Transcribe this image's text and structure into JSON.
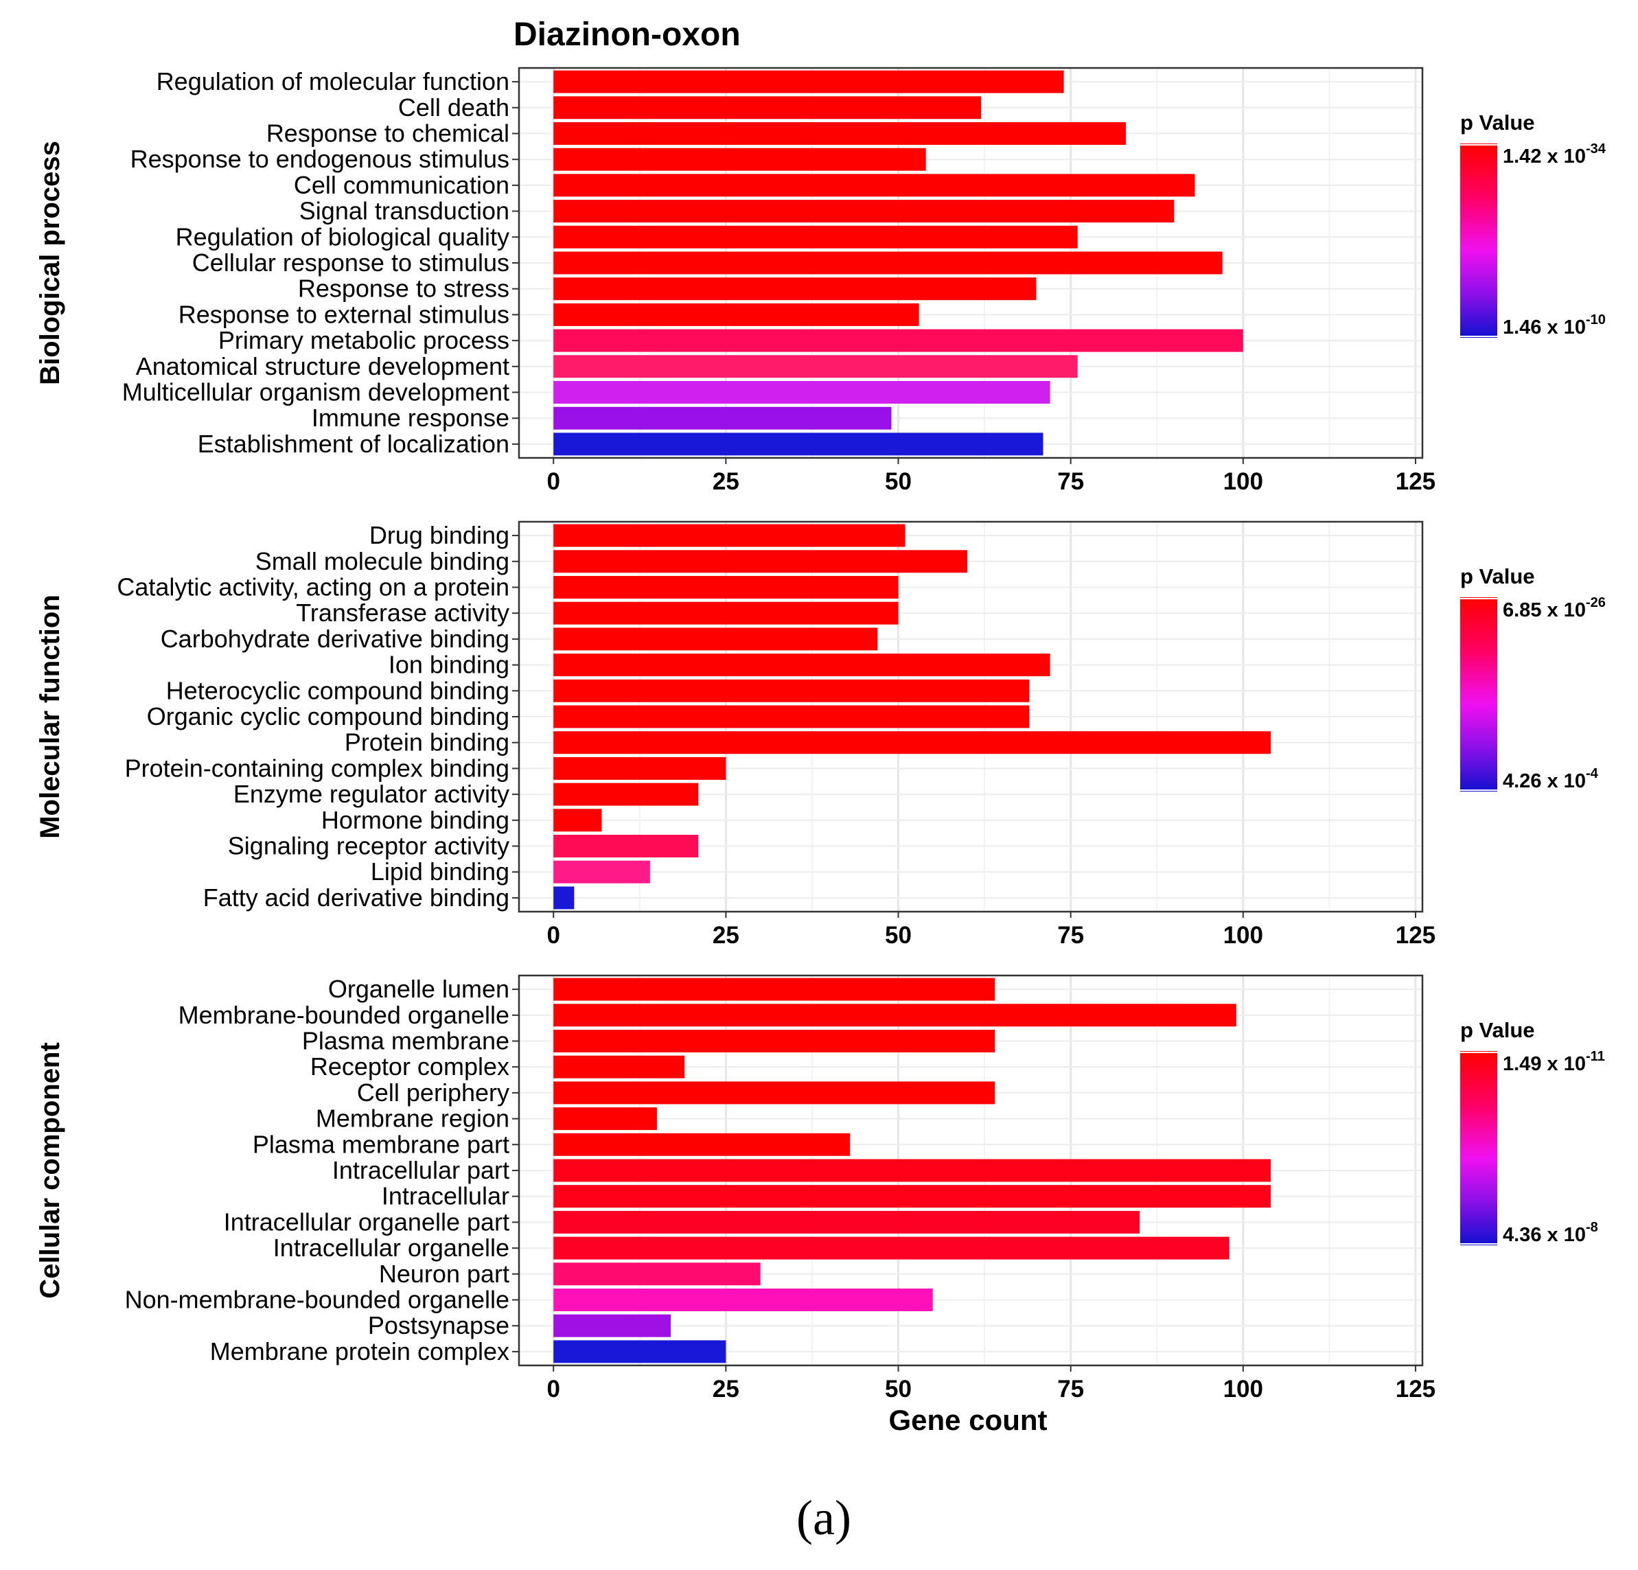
{
  "chart_data": [
    {
      "type": "bar",
      "orientation": "horizontal",
      "title": "Diazinon-oxon",
      "facet_label": "Biological process",
      "categories": [
        "Regulation of molecular function",
        "Cell death",
        "Response to chemical",
        "Response to endogenous stimulus",
        "Cell communication",
        "Signal transduction",
        "Regulation of biological quality",
        "Cellular response to stimulus",
        "Response to stress",
        "Response to external stimulus",
        "Primary metabolic process",
        "Anatomical structure development",
        "Multicellular organism development",
        "Immune response",
        "Establishment of localization"
      ],
      "values": [
        74,
        62,
        83,
        54,
        93,
        90,
        76,
        97,
        70,
        53,
        100,
        76,
        72,
        49,
        71
      ],
      "bar_colors": [
        "#ff0000",
        "#ff0000",
        "#ff0000",
        "#ff0000",
        "#ff0000",
        "#ff0000",
        "#ff0000",
        "#ff0000",
        "#ff0000",
        "#ff0000",
        "#ff0a5a",
        "#ff1b6a",
        "#d020f0",
        "#9a10e8",
        "#1a18d8"
      ],
      "xlim": [
        -5,
        126
      ],
      "xticks": [
        0,
        25,
        50,
        75,
        100,
        125
      ],
      "xlabel": "",
      "legend": {
        "title": "p Value",
        "high_base": "1.42 x 10",
        "high_exp": "-34",
        "low_base": "1.46 x 10",
        "low_exp": "-10",
        "position": "right"
      }
    },
    {
      "type": "bar",
      "orientation": "horizontal",
      "title": "",
      "facet_label": "Molecular function",
      "categories": [
        "Drug binding",
        "Small molecule binding",
        "Catalytic activity, acting on a protein",
        "Transferase activity",
        "Carbohydrate derivative binding",
        "Ion binding",
        "Heterocyclic compound binding",
        "Organic cyclic compound binding",
        "Protein binding",
        "Protein-containing complex binding",
        "Enzyme regulator activity",
        "Hormone binding",
        "Signaling receptor activity",
        "Lipid binding",
        "Fatty acid derivative binding"
      ],
      "values": [
        51,
        60,
        50,
        50,
        47,
        72,
        69,
        69,
        104,
        25,
        21,
        7,
        21,
        14,
        3
      ],
      "bar_colors": [
        "#ff0000",
        "#ff0000",
        "#ff0000",
        "#ff0000",
        "#ff0000",
        "#ff0000",
        "#ff0000",
        "#ff0000",
        "#ff0000",
        "#ff0000",
        "#ff0000",
        "#ff0000",
        "#ff0a55",
        "#ff1a88",
        "#1a18d8"
      ],
      "xlim": [
        -5,
        126
      ],
      "xticks": [
        0,
        25,
        50,
        75,
        100,
        125
      ],
      "xlabel": "",
      "legend": {
        "title": "p Value",
        "high_base": "6.85 x 10",
        "high_exp": "-26",
        "low_base": "4.26 x 10",
        "low_exp": "-4",
        "position": "right"
      }
    },
    {
      "type": "bar",
      "orientation": "horizontal",
      "title": "",
      "facet_label": "Cellular component",
      "categories": [
        "Organelle lumen",
        "Membrane-bounded organelle",
        "Plasma membrane",
        "Receptor complex",
        "Cell periphery",
        "Membrane region",
        "Plasma membrane part",
        "Intracellular part",
        "Intracellular",
        "Intracellular organelle part",
        "Intracellular organelle",
        "Neuron part",
        "Non-membrane-bounded organelle",
        "Postsynapse",
        "Membrane protein complex"
      ],
      "values": [
        64,
        99,
        64,
        19,
        64,
        15,
        43,
        104,
        104,
        85,
        98,
        30,
        55,
        17,
        25
      ],
      "bar_colors": [
        "#ff0000",
        "#ff0000",
        "#ff0000",
        "#ff0000",
        "#ff0000",
        "#ff0000",
        "#ff0000",
        "#ff0018",
        "#ff0018",
        "#ff0025",
        "#ff0025",
        "#ff0a6e",
        "#ff10b8",
        "#a010e4",
        "#1a18d8"
      ],
      "xlim": [
        -5,
        126
      ],
      "xticks": [
        0,
        25,
        50,
        75,
        100,
        125
      ],
      "xlabel": "Gene count",
      "legend": {
        "title": "p Value",
        "high_base": "1.49 x 10",
        "high_exp": "-11",
        "low_base": "4.36 x 10",
        "low_exp": "-8",
        "position": "right"
      }
    }
  ],
  "caption": "(a)"
}
